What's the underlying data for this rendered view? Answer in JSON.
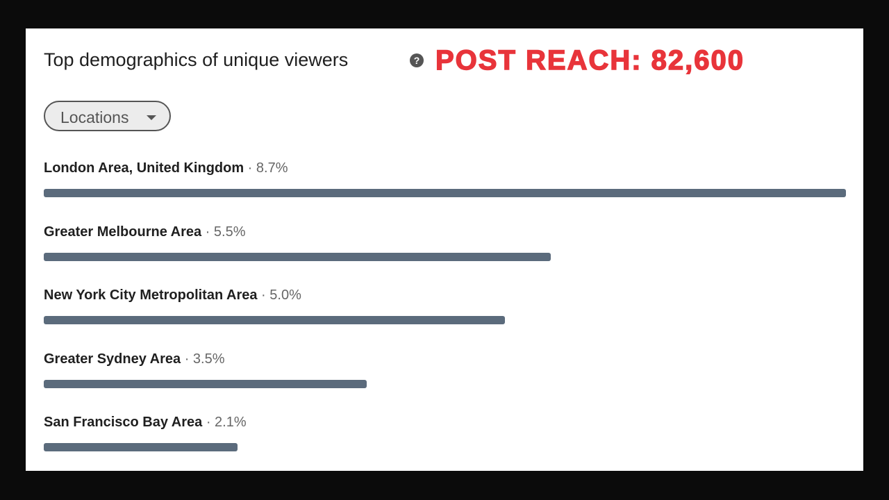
{
  "header": {
    "title": "Top demographics of unique viewers",
    "annotation": "POST REACH: 82,600",
    "filter": "Locations"
  },
  "items": [
    {
      "name": "London Area, United Kingdom",
      "value": 8.7,
      "value_label": "8.7%"
    },
    {
      "name": "Greater Melbourne Area",
      "value": 5.5,
      "value_label": "5.5%"
    },
    {
      "name": "New York City Metropolitan Area",
      "value": 5.0,
      "value_label": "5.0%"
    },
    {
      "name": "Greater Sydney Area",
      "value": 3.5,
      "value_label": "3.5%"
    },
    {
      "name": "San Francisco Bay Area",
      "value": 2.1,
      "value_label": "2.1%"
    }
  ]
}
